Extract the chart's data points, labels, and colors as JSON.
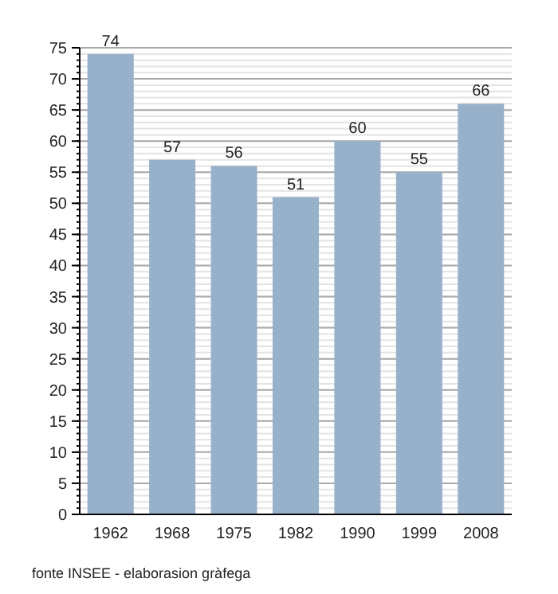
{
  "chart_data": {
    "type": "bar",
    "categories": [
      "1962",
      "1968",
      "1975",
      "1982",
      "1990",
      "1999",
      "2008"
    ],
    "values": [
      74,
      57,
      56,
      51,
      60,
      55,
      66
    ],
    "color": "#98b1cb",
    "data_labels": true,
    "ylim": [
      0,
      75
    ],
    "yticks": [
      0,
      5,
      10,
      15,
      20,
      25,
      30,
      35,
      40,
      45,
      50,
      55,
      60,
      65,
      70,
      75
    ],
    "grid": "y",
    "annotations": [
      "fonte INSEE - elaborasion gràfega"
    ]
  }
}
